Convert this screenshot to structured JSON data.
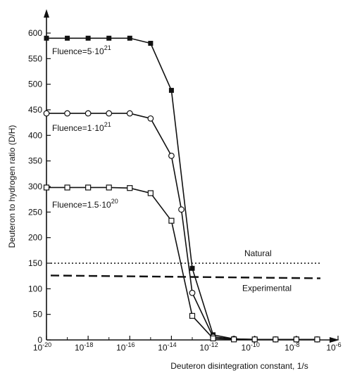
{
  "chart_data": {
    "type": "line",
    "title": "",
    "xlabel": "Deuteron disintegration constant, 1/s",
    "ylabel": "Deuteron to hydrogen ratio (D/H)",
    "x_scale": "log",
    "xlim": [
      1e-20,
      1e-06
    ],
    "ylim": [
      0,
      620
    ],
    "grid": false,
    "legend": "none",
    "x_ticks": [
      1e-20,
      1e-18,
      1e-16,
      1e-14,
      1e-12,
      1e-10,
      1e-08,
      1e-06
    ],
    "x_tick_labels": [
      {
        "base": "10",
        "exp": "-20"
      },
      {
        "base": "10",
        "exp": "-18"
      },
      {
        "base": "10",
        "exp": "-16"
      },
      {
        "base": "10",
        "exp": "-14"
      },
      {
        "base": "10",
        "exp": "-12"
      },
      {
        "base": "10",
        "exp": "-10"
      },
      {
        "base": "10",
        "exp": "-8"
      },
      {
        "base": "10",
        "exp": "-6"
      }
    ],
    "y_ticks": [
      0,
      50,
      100,
      150,
      200,
      250,
      300,
      350,
      400,
      450,
      500,
      550,
      600
    ],
    "series": [
      {
        "marker": "filled-square",
        "annotation": {
          "text": "Fluence=5·10",
          "exp": "21"
        },
        "x": [
          1e-20,
          1e-19,
          1e-18,
          1e-17,
          1e-16,
          1e-15,
          1e-14,
          1e-13,
          1e-12,
          1e-11,
          1e-10,
          1e-09,
          1e-08,
          1e-07
        ],
        "y": [
          590,
          590,
          590,
          590,
          590,
          580,
          488,
          140,
          10,
          2,
          1,
          1,
          1,
          1
        ]
      },
      {
        "marker": "open-circle",
        "annotation": {
          "text": "Fluence=1·10",
          "exp": "21"
        },
        "x": [
          1e-20,
          1e-19,
          1e-18,
          1e-17,
          1e-16,
          1e-15,
          1e-14,
          3e-14,
          1e-13,
          1e-12,
          1e-11,
          1e-10,
          1e-09,
          1e-08,
          1e-07
        ],
        "y": [
          443,
          443,
          443,
          443,
          443,
          433,
          360,
          255,
          92,
          6,
          2,
          1,
          1,
          1,
          1
        ]
      },
      {
        "marker": "open-square",
        "annotation": {
          "text": "Fluence=1.5·10",
          "exp": "20"
        },
        "x": [
          1e-20,
          1e-19,
          1e-18,
          1e-17,
          1e-16,
          1e-15,
          1e-14,
          1e-13,
          1e-12,
          1e-11,
          1e-10,
          1e-09,
          1e-08,
          1e-07
        ],
        "y": [
          298,
          298,
          298,
          298,
          297,
          287,
          233,
          47,
          3,
          1,
          1,
          1,
          1,
          1
        ]
      }
    ],
    "reference_lines": [
      {
        "label": "Natural",
        "y": 150,
        "style": "dotted"
      },
      {
        "label": "Experimental",
        "y": 126,
        "style": "dashed"
      }
    ]
  }
}
